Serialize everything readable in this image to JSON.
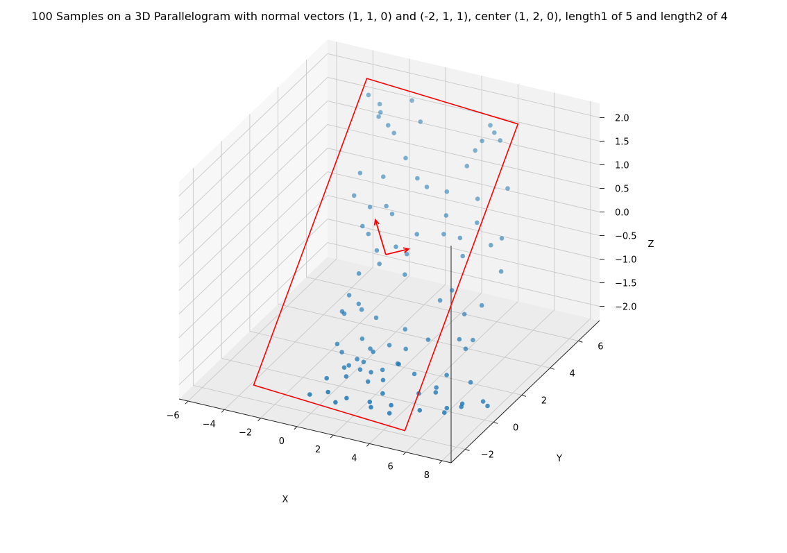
{
  "chart_data": {
    "type": "scatter",
    "title": "100 Samples on a 3D Parallelogram with normal vectors (1, 1, 0) and (-2, 1, 1), center (1, 2, 0), length1 of 5 and length2 of 4",
    "xlabel": "X",
    "ylabel": "Y",
    "zlabel": "Z",
    "xlim": [
      -6.5,
      8.5
    ],
    "ylim": [
      -3,
      7.5
    ],
    "zlim": [
      -2.3,
      2.3
    ],
    "x_ticks": [
      "−6",
      "−4",
      "−2",
      "0",
      "2",
      "4",
      "6",
      "8"
    ],
    "y_ticks": [
      "−2",
      "0",
      "2",
      "4",
      "6"
    ],
    "z_ticks": [
      "−2.0",
      "−1.5",
      "−1.0",
      "−0.5",
      "0.0",
      "0.5",
      "1.0",
      "1.5",
      "2.0"
    ],
    "grid": true,
    "colors": {
      "points": "#1f77b4",
      "outline": "#ff0000",
      "vectors": "#ff0000"
    },
    "center": [
      1,
      2,
      0
    ],
    "normal_vectors": [
      [
        1,
        1,
        0
      ],
      [
        -2,
        1,
        1
      ]
    ],
    "length1": 5,
    "length2": 4,
    "corners": [
      [
        -3.4,
        6.3,
        2.1
      ],
      [
        5.4,
        5.7,
        2.1
      ],
      [
        5.4,
        -2.3,
        -2.1
      ],
      [
        -3.4,
        -1.7,
        -2.1
      ]
    ],
    "points": [
      [
        -3.0,
        5.9,
        1.9
      ],
      [
        -2.3,
        5.8,
        1.8
      ],
      [
        -2.1,
        5.6,
        1.7
      ],
      [
        -2.2,
        5.6,
        1.6
      ],
      [
        -1.6,
        5.5,
        1.5
      ],
      [
        -0.6,
        5.9,
        2.0
      ],
      [
        -1.2,
        5.4,
        1.4
      ],
      [
        0.1,
        5.6,
        1.7
      ],
      [
        -0.4,
        5.2,
        1.0
      ],
      [
        3.8,
        5.8,
        1.9
      ],
      [
        4.1,
        5.7,
        1.8
      ],
      [
        4.5,
        5.6,
        1.7
      ],
      [
        3.5,
        5.6,
        1.6
      ],
      [
        3.2,
        5.5,
        1.4
      ],
      [
        2.9,
        5.3,
        1.1
      ],
      [
        -2.6,
        4.8,
        0.6
      ],
      [
        -1.4,
        4.9,
        0.6
      ],
      [
        -2.7,
        4.5,
        0.2
      ],
      [
        0.4,
        5.0,
        0.7
      ],
      [
        1.0,
        4.9,
        0.6
      ],
      [
        2.1,
        4.9,
        0.6
      ],
      [
        5.3,
        5.1,
        0.9
      ],
      [
        3.8,
        4.9,
        0.6
      ],
      [
        4.0,
        4.6,
        0.2
      ],
      [
        2.3,
        4.6,
        0.2
      ],
      [
        -1.9,
        4.6,
        0.0
      ],
      [
        -1.0,
        4.6,
        0.1
      ],
      [
        -0.6,
        4.5,
        0.0
      ],
      [
        -2.0,
        4.2,
        -0.3
      ],
      [
        -1.6,
        4.1,
        -0.4
      ],
      [
        -0.9,
        3.8,
        -0.6
      ],
      [
        0.0,
        4.0,
        -0.5
      ],
      [
        0.6,
        4.0,
        -0.6
      ],
      [
        1.0,
        4.2,
        -0.2
      ],
      [
        2.4,
        4.3,
        -0.1
      ],
      [
        3.3,
        4.3,
        -0.1
      ],
      [
        3.6,
        4.1,
        -0.4
      ],
      [
        5.0,
        4.3,
        -0.1
      ],
      [
        5.6,
        4.3,
        0.1
      ],
      [
        5.8,
        4.0,
        -0.5
      ],
      [
        -1.5,
        3.3,
        -1.0
      ],
      [
        -0.6,
        3.6,
        -0.8
      ],
      [
        0.8,
        3.6,
        -0.9
      ],
      [
        3.4,
        3.6,
        -1.0
      ],
      [
        2.9,
        3.4,
        -1.2
      ],
      [
        5.2,
        3.4,
        -1.1
      ],
      [
        4.4,
        3.2,
        -1.3
      ],
      [
        5.1,
        2.9,
        -1.7
      ],
      [
        -1.8,
        3.0,
        -1.4
      ],
      [
        -1.2,
        2.9,
        -1.5
      ],
      [
        -0.8,
        2.6,
        -1.5
      ],
      [
        -1.8,
        2.5,
        -1.6
      ],
      [
        -1.6,
        2.4,
        -1.6
      ],
      [
        0.0,
        2.6,
        -1.6
      ],
      [
        1.6,
        2.6,
        -1.7
      ],
      [
        3.1,
        2.3,
        -1.7
      ],
      [
        4.9,
        2.2,
        -1.5
      ],
      [
        5.4,
        2.0,
        -1.6
      ],
      [
        -1.6,
        1.9,
        -2.1
      ],
      [
        -0.3,
        2.0,
        -1.9
      ],
      [
        0.3,
        1.8,
        -2.0
      ],
      [
        1.2,
        2.0,
        -1.9
      ],
      [
        2.1,
        2.0,
        -1.9
      ],
      [
        -0.8,
        1.2,
        -2.0
      ],
      [
        0.4,
        1.2,
        -2.1
      ],
      [
        2.2,
        1.3,
        -2.0
      ],
      [
        1.0,
        1.1,
        -1.8
      ],
      [
        0.2,
        1.0,
        -2.0
      ],
      [
        2.5,
        1.0,
        -1.9
      ],
      [
        3.2,
        1.2,
        -2.1
      ],
      [
        1.6,
        1.0,
        -2.1
      ],
      [
        4.9,
        1.3,
        -2.0
      ],
      [
        -0.1,
        0.8,
        -2.1
      ],
      [
        0.6,
        0.7,
        -2.1
      ],
      [
        -0.2,
        0.6,
        -2.1
      ],
      [
        1.2,
        0.7,
        -2.1
      ],
      [
        2.1,
        0.4,
        -2.1
      ],
      [
        4.8,
        0.7,
        -2.1
      ],
      [
        5.0,
        0.4,
        -2.1
      ],
      [
        6.3,
        1.2,
        -2.0
      ],
      [
        7.3,
        0.8,
        -2.2
      ],
      [
        -0.7,
        0.0,
        -2.2
      ],
      [
        0.3,
        0.1,
        -2.1
      ],
      [
        1.5,
        0.1,
        -2.1
      ],
      [
        4.3,
        0.1,
        -2.1
      ],
      [
        6.0,
        -0.1,
        -2.2
      ],
      [
        6.7,
        0.1,
        -2.1
      ],
      [
        2.7,
        -0.4,
        -2.1
      ],
      [
        0.0,
        -0.8,
        -2.2
      ],
      [
        1.1,
        -0.9,
        -2.2
      ],
      [
        2.3,
        -0.8,
        -2.2
      ],
      [
        3.4,
        -0.7,
        -2.2
      ],
      [
        -0.7,
        -1.2,
        -2.2
      ],
      [
        0.8,
        -1.3,
        -2.2
      ],
      [
        2.6,
        -1.1,
        -2.2
      ],
      [
        3.7,
        -1.2,
        -2.2
      ],
      [
        4.9,
        -0.6,
        -2.2
      ],
      [
        6.1,
        -0.4,
        -2.2
      ],
      [
        6.8,
        -0.1,
        -2.1
      ],
      [
        7.7,
        0.6,
        -2.2
      ]
    ]
  }
}
